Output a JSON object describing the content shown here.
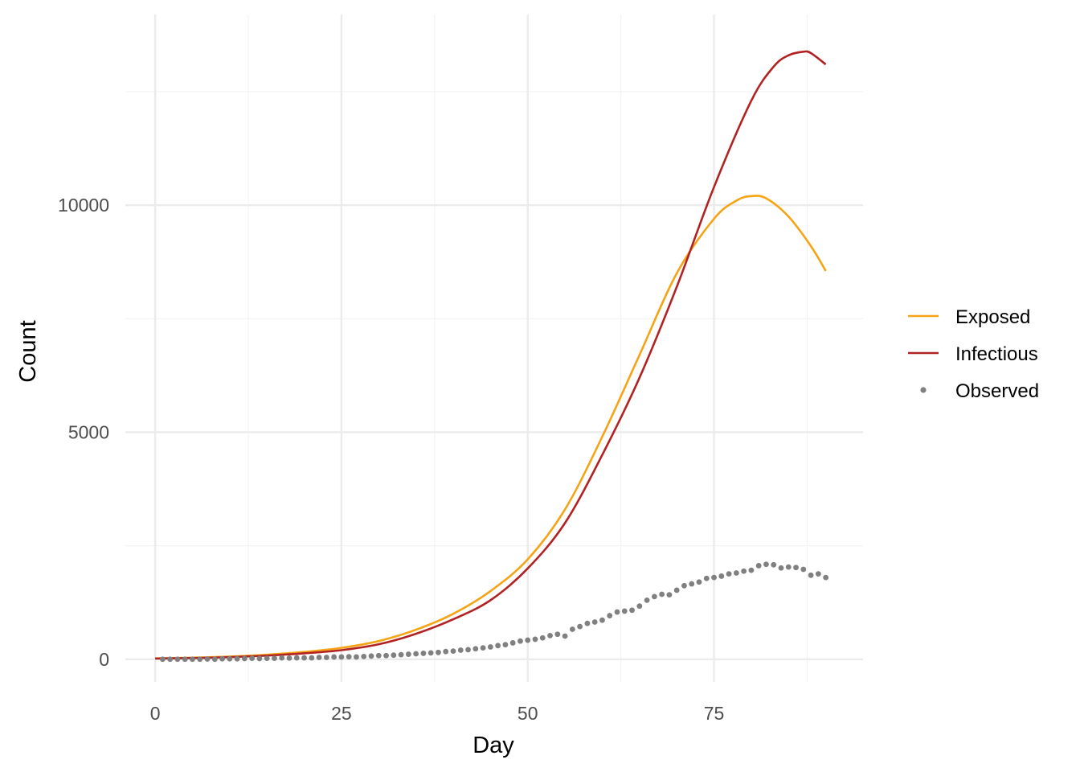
{
  "chart_data": {
    "type": "line",
    "title": "",
    "xlabel": "Day",
    "ylabel": "Count",
    "xlim": [
      -4,
      95
    ],
    "ylim": [
      -500,
      14200
    ],
    "x_ticks": [
      0,
      25,
      50,
      75
    ],
    "x_tick_labels": [
      "0",
      "25",
      "50",
      "75"
    ],
    "x_minor_ticks": [
      12.5,
      37.5,
      62.5,
      87.5
    ],
    "y_ticks": [
      0,
      5000,
      10000
    ],
    "y_tick_labels": [
      "0",
      "5000",
      "10000"
    ],
    "y_minor_ticks": [
      2500,
      7500,
      12500
    ],
    "grid": true,
    "legend_position": "right",
    "colors": {
      "background": "#ffffff",
      "grid_major": "#ebebeb",
      "grid_minor": "#f3f3f3",
      "exposed": "#f5a416",
      "infectious": "#b22222",
      "observed": "#808080"
    },
    "series": [
      {
        "name": "Exposed",
        "kind": "line",
        "color": "#f5a416",
        "x": [
          0,
          5,
          10,
          15,
          20,
          25,
          30,
          35,
          40,
          45,
          50,
          55,
          60,
          65,
          70,
          75,
          78,
          80,
          82,
          85,
          88,
          90
        ],
        "y": [
          20,
          35,
          60,
          100,
          160,
          250,
          400,
          650,
          1000,
          1500,
          2200,
          3300,
          4900,
          6700,
          8500,
          9700,
          10100,
          10200,
          10150,
          9750,
          9100,
          8550
        ]
      },
      {
        "name": "Infectious",
        "kind": "line",
        "color": "#b22222",
        "x": [
          0,
          5,
          10,
          15,
          20,
          25,
          30,
          35,
          40,
          45,
          50,
          55,
          60,
          65,
          70,
          75,
          80,
          83,
          85,
          87,
          88,
          90
        ],
        "y": [
          15,
          25,
          45,
          80,
          130,
          200,
          330,
          560,
          880,
          1300,
          2000,
          3000,
          4500,
          6200,
          8200,
          10400,
          12300,
          13050,
          13300,
          13380,
          13350,
          13100
        ]
      },
      {
        "name": "Observed",
        "kind": "points",
        "color": "#808080",
        "x": [
          1,
          2,
          3,
          4,
          5,
          6,
          7,
          8,
          9,
          10,
          11,
          12,
          13,
          14,
          15,
          16,
          17,
          18,
          19,
          20,
          21,
          22,
          23,
          24,
          25,
          26,
          27,
          28,
          29,
          30,
          31,
          32,
          33,
          34,
          35,
          36,
          37,
          38,
          39,
          40,
          41,
          42,
          43,
          44,
          45,
          46,
          47,
          48,
          49,
          50,
          51,
          52,
          53,
          54,
          55,
          56,
          57,
          58,
          59,
          60,
          61,
          62,
          63,
          64,
          65,
          66,
          67,
          68,
          69,
          70,
          71,
          72,
          73,
          74,
          75,
          76,
          77,
          78,
          79,
          80,
          81,
          82,
          83,
          84,
          85,
          86,
          87,
          88,
          89,
          90
        ],
        "y": [
          0,
          0,
          0,
          0,
          0,
          0,
          5,
          0,
          10,
          10,
          10,
          15,
          20,
          15,
          20,
          20,
          30,
          25,
          30,
          30,
          30,
          40,
          40,
          50,
          50,
          55,
          50,
          60,
          70,
          80,
          80,
          90,
          100,
          110,
          120,
          130,
          140,
          150,
          170,
          180,
          200,
          210,
          230,
          250,
          270,
          300,
          320,
          360,
          400,
          420,
          440,
          470,
          520,
          550,
          510,
          660,
          720,
          790,
          820,
          860,
          960,
          1040,
          1060,
          1080,
          1170,
          1300,
          1380,
          1430,
          1420,
          1520,
          1620,
          1660,
          1700,
          1780,
          1800,
          1830,
          1880,
          1900,
          1940,
          1960,
          2060,
          2090,
          2080,
          2010,
          2030,
          2020,
          1980,
          1850,
          1880,
          1800
        ]
      }
    ]
  }
}
